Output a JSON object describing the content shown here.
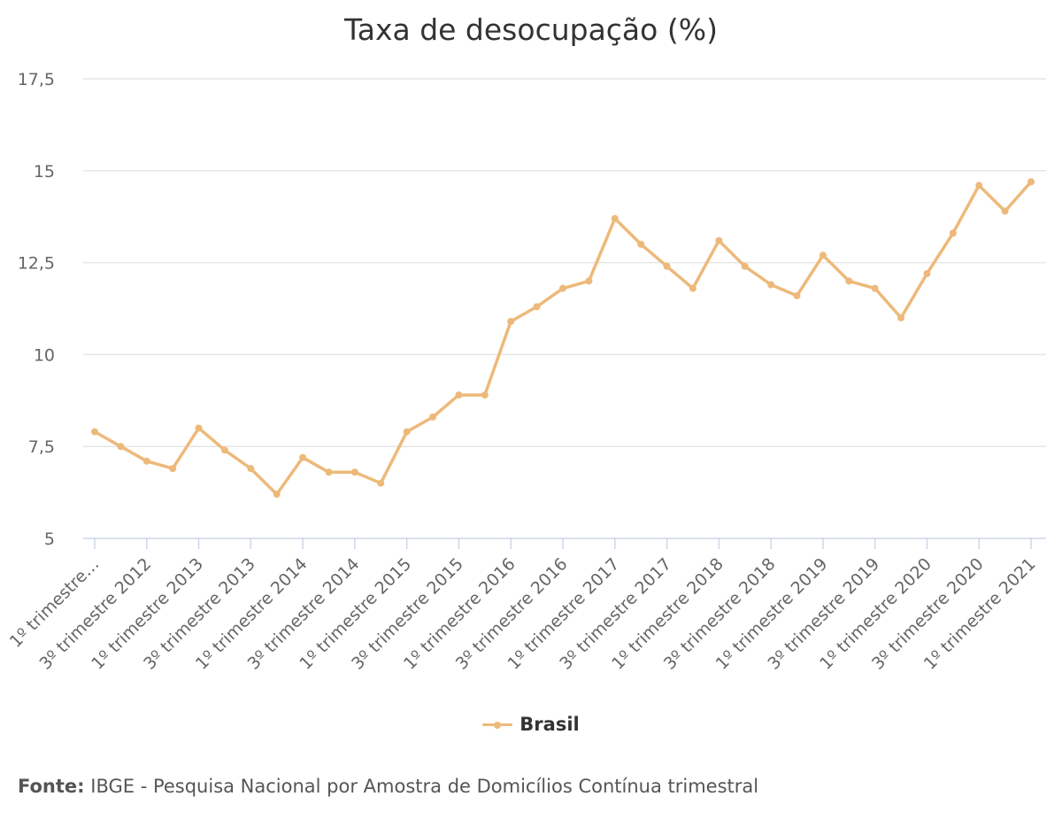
{
  "chart_data": {
    "type": "line",
    "title": "Taxa de desocupação (%)",
    "source_label": "Fonte:",
    "source_text": "IBGE - Pesquisa Nacional por Amostra de Domicílios Contínua trimestral",
    "color": "#edb97a",
    "grid_color": "#e6e6e6",
    "axis_color": "#ccd6eb",
    "ylim": [
      5,
      17.5
    ],
    "yticks": [
      "5",
      "7,5",
      "10",
      "12,5",
      "15",
      "17,5"
    ],
    "ytick_values": [
      5,
      7.5,
      10,
      12.5,
      15,
      17.5
    ],
    "grid": true,
    "legend_position": "bottom-center",
    "x_tick_labels": [
      "1º trimestre…",
      "3º trimestre 2012",
      "1º trimestre 2013",
      "3º trimestre 2013",
      "1º trimestre 2014",
      "3º trimestre 2014",
      "1º trimestre 2015",
      "3º trimestre 2015",
      "1º trimestre 2016",
      "3º trimestre 2016",
      "1º trimestre 2017",
      "3º trimestre 2017",
      "1º trimestre 2018",
      "3º trimestre 2018",
      "1º trimestre 2019",
      "3º trimestre 2019",
      "1º trimestre 2020",
      "3º trimestre 2020",
      "1º trimestre 2021"
    ],
    "series": [
      {
        "name": "Brasil",
        "values": [
          7.9,
          7.5,
          7.1,
          6.9,
          8.0,
          7.4,
          6.9,
          6.2,
          7.2,
          6.8,
          6.8,
          6.5,
          7.9,
          8.3,
          8.9,
          8.9,
          10.9,
          11.3,
          11.8,
          12.0,
          13.7,
          13.0,
          12.4,
          11.8,
          13.1,
          12.4,
          11.9,
          11.6,
          12.7,
          12.0,
          11.8,
          11.0,
          12.2,
          13.3,
          14.6,
          13.9,
          14.7
        ]
      }
    ]
  }
}
